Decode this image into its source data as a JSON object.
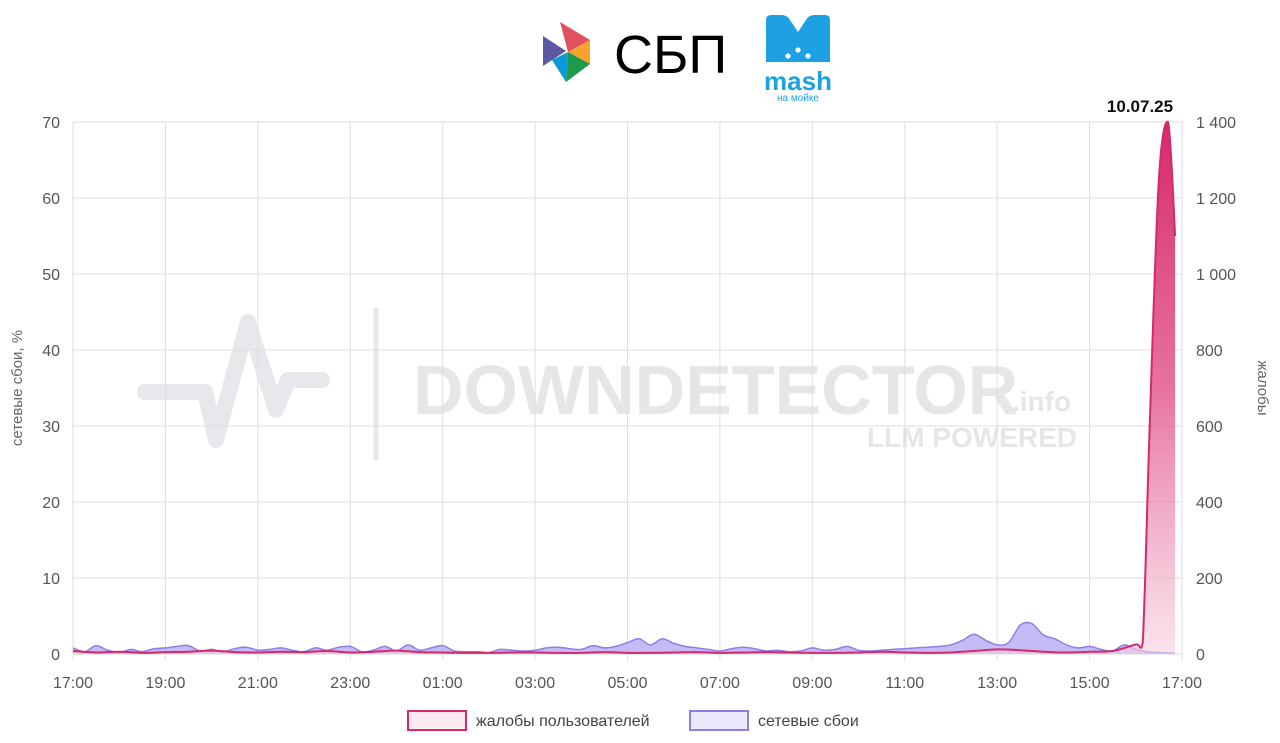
{
  "header": {
    "sbp_label": "СБП",
    "mash_label": "mash",
    "mash_sub": "на мойке"
  },
  "watermark": {
    "main": "DOWNDETECTOR",
    "suffix": ".info",
    "sub": "LLM POWERED"
  },
  "colors": {
    "complaints": "#d6286a",
    "outages": "#8f7de8",
    "grid": "#dedede",
    "mash": "#1da1e2"
  },
  "chart_data": {
    "type": "area",
    "peak_label": "10.07.25",
    "x_labels": [
      "17:00",
      "19:00",
      "21:00",
      "23:00",
      "01:00",
      "03:00",
      "05:00",
      "07:00",
      "09:00",
      "11:00",
      "13:00",
      "15:00",
      "17:00"
    ],
    "x_range_hours": [
      0,
      24
    ],
    "y_left": {
      "label": "сетевые сбои, %",
      "range": [
        0,
        70
      ],
      "ticks": [
        "0",
        "10",
        "20",
        "30",
        "40",
        "50",
        "60",
        "70"
      ]
    },
    "y_right": {
      "label": "жалобы",
      "range": [
        0,
        1400
      ],
      "ticks": [
        "0",
        "200",
        "400",
        "600",
        "800",
        "1 000",
        "1 200",
        "1 400"
      ]
    },
    "series": [
      {
        "name": "жалобы пользователей",
        "axis": "right",
        "x": [
          0,
          0.5,
          1,
          1.5,
          2,
          2.5,
          3,
          3.5,
          4,
          4.5,
          5,
          5.5,
          6,
          6.5,
          7,
          7.5,
          8,
          8.5,
          9,
          9.5,
          10,
          10.5,
          11,
          11.5,
          12,
          12.5,
          13,
          13.5,
          14,
          14.5,
          15,
          15.5,
          16,
          16.5,
          17,
          17.5,
          18,
          18.5,
          19,
          19.5,
          20,
          20.5,
          21,
          21.5,
          22,
          22.5,
          23,
          23.15,
          23.3,
          23.5,
          23.7,
          23.85
        ],
        "values": [
          8,
          4,
          6,
          3,
          5,
          6,
          9,
          5,
          4,
          6,
          5,
          8,
          4,
          6,
          9,
          5,
          4,
          3,
          3,
          4,
          4,
          3,
          3,
          5,
          3,
          3,
          4,
          5,
          3,
          4,
          5,
          4,
          3,
          3,
          4,
          6,
          4,
          3,
          4,
          8,
          12,
          10,
          6,
          4,
          6,
          8,
          25,
          30,
          600,
          1250,
          1400,
          1100
        ]
      },
      {
        "name": "сетевые сбои",
        "axis": "left",
        "x": [
          0,
          0.25,
          0.5,
          0.75,
          1,
          1.25,
          1.5,
          1.75,
          2,
          2.25,
          2.5,
          2.75,
          3,
          3.25,
          3.5,
          3.75,
          4,
          4.25,
          4.5,
          4.75,
          5,
          5.25,
          5.5,
          5.75,
          6,
          6.25,
          6.5,
          6.75,
          7,
          7.25,
          7.5,
          7.75,
          8,
          8.25,
          8.5,
          8.75,
          9,
          9.25,
          9.5,
          9.75,
          10,
          10.25,
          10.5,
          10.75,
          11,
          11.25,
          11.5,
          11.75,
          12,
          12.25,
          12.5,
          12.75,
          13,
          13.25,
          13.5,
          13.75,
          14,
          14.25,
          14.5,
          14.75,
          15,
          15.25,
          15.5,
          15.75,
          16,
          16.25,
          16.5,
          16.75,
          17,
          17.25,
          17.5,
          17.75,
          18,
          18.25,
          18.5,
          18.75,
          19,
          19.25,
          19.5,
          19.75,
          20,
          20.25,
          20.5,
          20.75,
          21,
          21.25,
          21.5,
          21.75,
          22,
          22.25,
          22.5,
          22.75,
          23,
          23.25,
          23.5,
          23.85
        ],
        "values": [
          0.8,
          0.3,
          1.1,
          0.5,
          0.2,
          0.6,
          0.3,
          0.7,
          0.8,
          1.0,
          1.1,
          0.4,
          0.6,
          0.3,
          0.7,
          0.9,
          0.5,
          0.6,
          0.8,
          0.5,
          0.3,
          0.8,
          0.5,
          0.9,
          1.0,
          0.3,
          0.5,
          1.0,
          0.4,
          1.2,
          0.5,
          0.8,
          1.1,
          0.4,
          0.3,
          0.3,
          0.2,
          0.6,
          0.5,
          0.4,
          0.5,
          0.8,
          0.9,
          0.7,
          0.6,
          1.1,
          0.8,
          1.0,
          1.5,
          2.0,
          1.2,
          2.0,
          1.4,
          1.0,
          0.8,
          0.6,
          0.4,
          0.7,
          0.9,
          0.7,
          0.4,
          0.5,
          0.3,
          0.4,
          0.8,
          0.5,
          0.6,
          1.0,
          0.5,
          0.4,
          0.5,
          0.6,
          0.7,
          0.8,
          0.9,
          1.0,
          1.2,
          1.8,
          2.6,
          1.8,
          1.2,
          1.5,
          3.8,
          4.0,
          2.5,
          2.0,
          1.2,
          0.8,
          1.0,
          0.6,
          0.4,
          1.2,
          0.6,
          0.3,
          0.2,
          0.1
        ]
      }
    ],
    "legend": [
      "жалобы пользователей",
      "сетевые сбои"
    ],
    "legend_position": "bottom"
  }
}
